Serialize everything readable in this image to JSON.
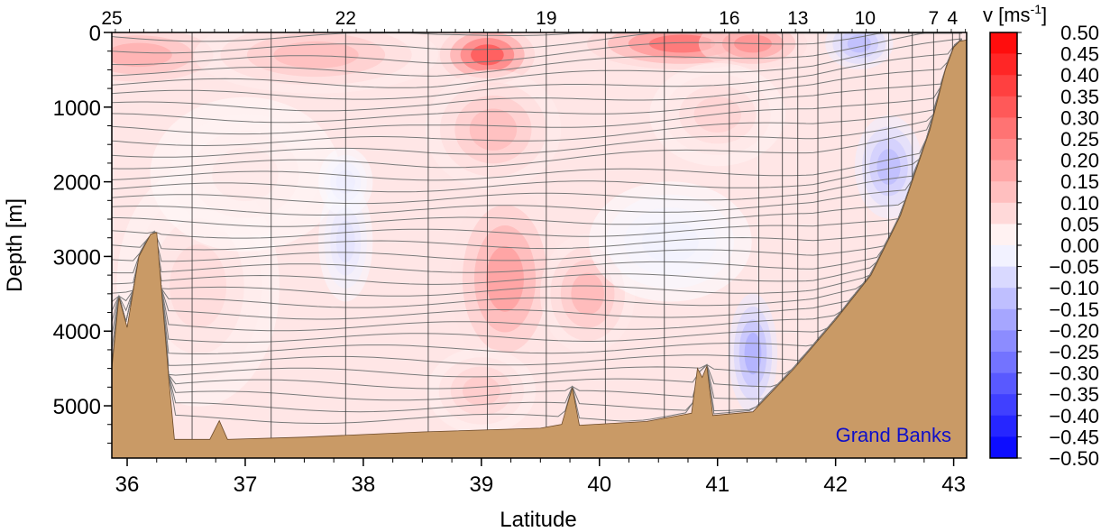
{
  "chart_data": {
    "type": "heatmap",
    "title": "",
    "xlabel": "Latitude",
    "ylabel": "Depth [m]",
    "xlim": [
      35.87,
      43.11
    ],
    "ylim": [
      0,
      5700
    ],
    "y_reversed": true,
    "x_ticks": [
      "36",
      "37",
      "38",
      "39",
      "40",
      "41",
      "42",
      "43"
    ],
    "y_ticks": [
      "0",
      "1000",
      "2000",
      "3000",
      "4000",
      "5000"
    ],
    "stations": [
      {
        "label": "25",
        "lat": 35.87
      },
      {
        "label": "22",
        "lat": 37.85
      },
      {
        "label": "19",
        "lat": 39.55
      },
      {
        "label": "16",
        "lat": 41.1
      },
      {
        "label": "13",
        "lat": 41.68
      },
      {
        "label": "10",
        "lat": 42.25
      },
      {
        "label": "7",
        "lat": 42.83
      },
      {
        "label": "4",
        "lat": 42.99
      }
    ],
    "station_lines_lat": [
      35.87,
      36.55,
      37.22,
      37.85,
      38.55,
      39.05,
      39.55,
      40.05,
      40.55,
      41.1,
      41.35,
      41.55,
      41.68,
      41.85,
      42.05,
      42.25,
      42.45,
      42.65,
      42.83,
      42.99,
      43.05
    ],
    "colorbar": {
      "label": "v [ms",
      "label_sup": "-1",
      "label_close": "]",
      "min": -0.5,
      "max": 0.5,
      "step": 0.05,
      "tick_labels": [
        "0.50",
        "0.45",
        "0.40",
        "0.35",
        "0.30",
        "0.25",
        "0.20",
        "0.15",
        "0.10",
        "0.05",
        "0.00",
        "−0.05",
        "−0.10",
        "−0.15",
        "−0.20",
        "−0.25",
        "−0.30",
        "−0.35",
        "−0.40",
        "−0.45",
        "−0.50"
      ],
      "colors": {
        "positive": "#ff0000",
        "negative": "#0000ff",
        "zero": "#ffffff"
      }
    },
    "annotation": "Grand Banks",
    "annotation_color": "#1010c8",
    "bathymetry_color": "#c99a66",
    "bathymetry": [
      {
        "lat": 35.87,
        "depth": 4500
      },
      {
        "lat": 35.93,
        "depth": 3550
      },
      {
        "lat": 36.0,
        "depth": 3950
      },
      {
        "lat": 36.1,
        "depth": 3000
      },
      {
        "lat": 36.2,
        "depth": 2700
      },
      {
        "lat": 36.25,
        "depth": 2680
      },
      {
        "lat": 36.35,
        "depth": 4600
      },
      {
        "lat": 36.4,
        "depth": 5450
      },
      {
        "lat": 36.7,
        "depth": 5450
      },
      {
        "lat": 36.78,
        "depth": 5200
      },
      {
        "lat": 36.85,
        "depth": 5450
      },
      {
        "lat": 37.5,
        "depth": 5420
      },
      {
        "lat": 38.5,
        "depth": 5350
      },
      {
        "lat": 39.5,
        "depth": 5300
      },
      {
        "lat": 39.68,
        "depth": 5250
      },
      {
        "lat": 39.77,
        "depth": 4760
      },
      {
        "lat": 39.83,
        "depth": 5260
      },
      {
        "lat": 40.4,
        "depth": 5210
      },
      {
        "lat": 40.78,
        "depth": 5100
      },
      {
        "lat": 40.83,
        "depth": 4500
      },
      {
        "lat": 40.87,
        "depth": 4620
      },
      {
        "lat": 40.91,
        "depth": 4470
      },
      {
        "lat": 40.96,
        "depth": 5130
      },
      {
        "lat": 41.3,
        "depth": 5080
      },
      {
        "lat": 41.65,
        "depth": 4500
      },
      {
        "lat": 42.0,
        "depth": 3850
      },
      {
        "lat": 42.3,
        "depth": 3250
      },
      {
        "lat": 42.55,
        "depth": 2450
      },
      {
        "lat": 42.8,
        "depth": 1300
      },
      {
        "lat": 42.93,
        "depth": 500
      },
      {
        "lat": 43.0,
        "depth": 200
      },
      {
        "lat": 43.05,
        "depth": 120
      },
      {
        "lat": 43.11,
        "depth": 100
      }
    ],
    "velocity_blobs": [
      {
        "lat": 36.1,
        "depth": 300,
        "v": 0.18,
        "wlat": 0.7,
        "wd": 400
      },
      {
        "lat": 37.6,
        "depth": 300,
        "v": 0.15,
        "wlat": 0.9,
        "wd": 450
      },
      {
        "lat": 39.05,
        "depth": 300,
        "v": 0.38,
        "wlat": 0.35,
        "wd": 350
      },
      {
        "lat": 40.7,
        "depth": 150,
        "v": 0.32,
        "wlat": 0.7,
        "wd": 300
      },
      {
        "lat": 41.3,
        "depth": 150,
        "v": 0.25,
        "wlat": 0.4,
        "wd": 300
      },
      {
        "lat": 39.1,
        "depth": 1300,
        "v": 0.15,
        "wlat": 0.5,
        "wd": 700
      },
      {
        "lat": 41.0,
        "depth": 1100,
        "v": 0.1,
        "wlat": 0.5,
        "wd": 600
      },
      {
        "lat": 39.2,
        "depth": 3300,
        "v": 0.22,
        "wlat": 0.4,
        "wd": 1100
      },
      {
        "lat": 39.9,
        "depth": 3500,
        "v": 0.16,
        "wlat": 0.35,
        "wd": 700
      },
      {
        "lat": 39.0,
        "depth": 4800,
        "v": 0.12,
        "wlat": 0.4,
        "wd": 500
      },
      {
        "lat": 36.6,
        "depth": 3400,
        "v": 0.08,
        "wlat": 0.6,
        "wd": 1400
      },
      {
        "lat": 37.0,
        "depth": 1900,
        "v": 0.05,
        "wlat": 0.7,
        "wd": 900
      },
      {
        "lat": 42.2,
        "depth": 150,
        "v": -0.15,
        "wlat": 0.25,
        "wd": 300
      },
      {
        "lat": 42.45,
        "depth": 1800,
        "v": -0.15,
        "wlat": 0.25,
        "wd": 600
      },
      {
        "lat": 41.3,
        "depth": 4300,
        "v": -0.18,
        "wlat": 0.18,
        "wd": 700
      },
      {
        "lat": 37.85,
        "depth": 2800,
        "v": -0.06,
        "wlat": 0.2,
        "wd": 700
      },
      {
        "lat": 37.85,
        "depth": 2000,
        "v": -0.04,
        "wlat": 0.2,
        "wd": 400
      },
      {
        "lat": 40.6,
        "depth": 2800,
        "v": -0.03,
        "wlat": 0.6,
        "wd": 700
      }
    ]
  }
}
